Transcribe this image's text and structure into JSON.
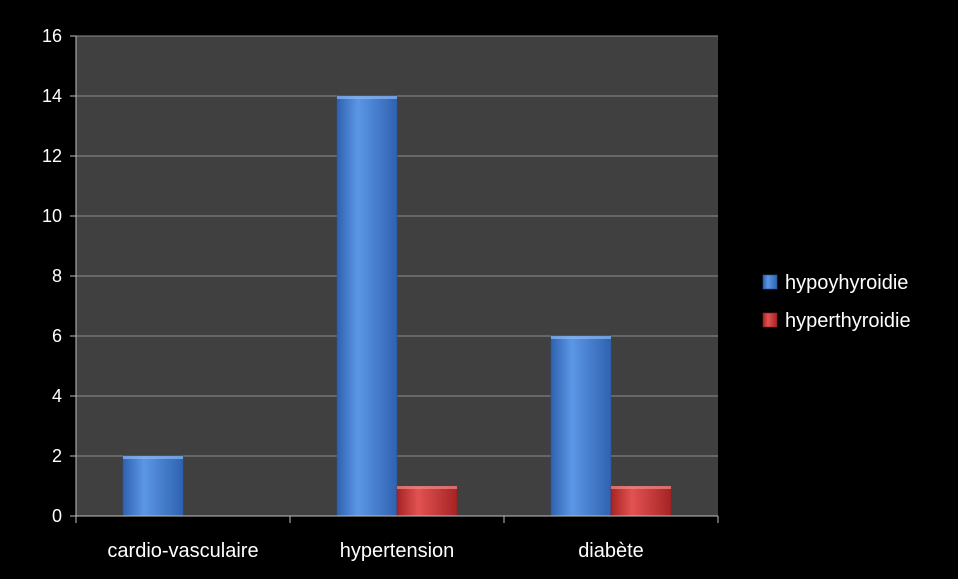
{
  "chart_data": {
    "type": "bar",
    "categories": [
      "cardio-vasculaire",
      "hypertension",
      "diabète"
    ],
    "series": [
      {
        "name": "hypoyhyroidie",
        "values": [
          2,
          14,
          6
        ],
        "color": "#4a86d6"
      },
      {
        "name": "hyperthyroidie",
        "values": [
          0,
          1,
          1
        ],
        "color": "#d23b3b"
      }
    ],
    "yticks": [
      "0",
      "2",
      "4",
      "6",
      "8",
      "10",
      "12",
      "14",
      "16"
    ],
    "ylim": [
      0,
      16
    ],
    "grid": true,
    "legend_position": "right",
    "plot_background": "#404040",
    "page_background": "#000000"
  }
}
